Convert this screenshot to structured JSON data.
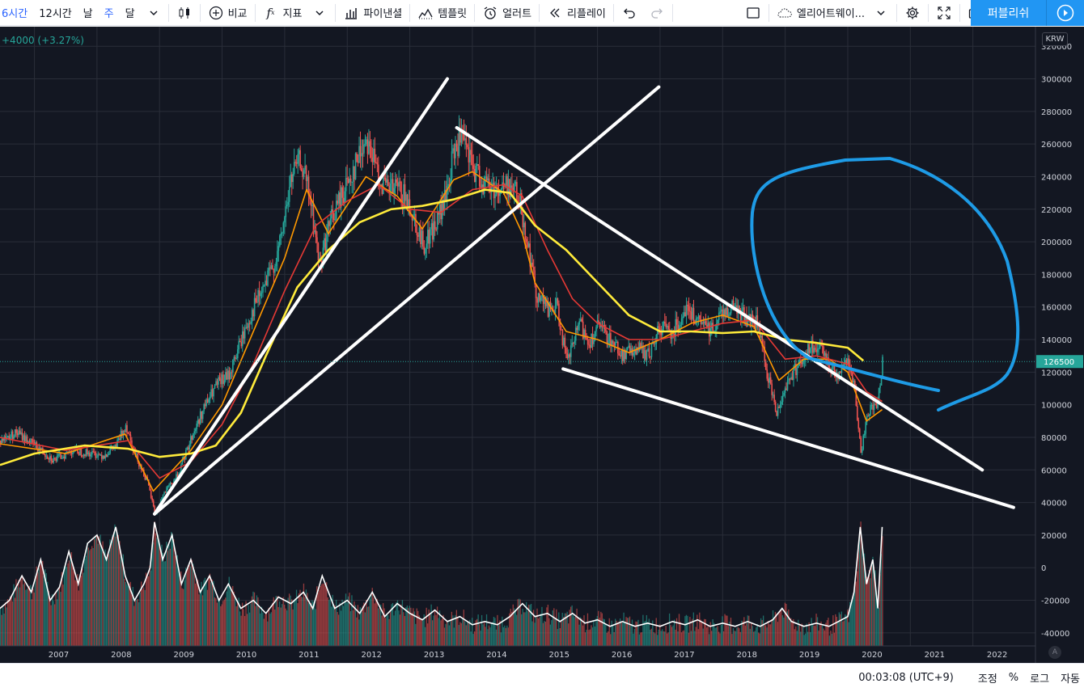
{
  "toolbar": {
    "intervals": [
      "6시간",
      "12시간",
      "날",
      "주",
      "달"
    ],
    "active_interval": "주",
    "compare_label": "비교",
    "indicators_label": "지표",
    "financials_label": "파이낸셜",
    "templates_label": "템플릿",
    "alert_label": "얼러트",
    "replay_label": "리플레이",
    "alert_name_label": "엘리어트웨이...",
    "publish_label": "퍼블리쉬",
    "icons": [
      "candles-icon",
      "plus-circle-icon",
      "fx-icon",
      "chevron-down-icon",
      "bar-chart-icon",
      "template-icon",
      "alarm-clock-icon",
      "rewind-icon",
      "undo-icon",
      "redo-icon",
      "rectangle-icon",
      "cloud-icon",
      "gear-icon",
      "fullscreen-icon",
      "camera-icon",
      "play-icon"
    ]
  },
  "chart": {
    "change_text": "+4000 (+3.27%)",
    "currency": "KRW",
    "last_price_label": "126500",
    "auto_label": "A",
    "colors": {
      "background": "#131722",
      "up": "#26a69a",
      "down": "#ef5350",
      "ma_orange": "#ff9800",
      "ma_red": "#e53935",
      "ma_yellow": "#ffeb3b",
      "trendline": "#ffffff",
      "circle": "#1e9be6",
      "volume_line": "#ffffff"
    }
  },
  "chart_data": {
    "type": "candlestick",
    "currency": "KRW",
    "y_ticks": [
      320000,
      300000,
      280000,
      260000,
      240000,
      220000,
      200000,
      180000,
      160000,
      140000,
      120000,
      100000,
      80000,
      60000,
      40000,
      20000,
      0,
      -20000,
      -40000
    ],
    "y_range": [
      -48000,
      332000
    ],
    "x_ticks": [
      "2007",
      "2008",
      "2009",
      "2010",
      "2011",
      "2012",
      "2013",
      "2014",
      "2015",
      "2016",
      "2017",
      "2018",
      "2019",
      "2020",
      "2021",
      "2022"
    ],
    "x_range": [
      2006.45,
      2023.0
    ],
    "last_price": 126500,
    "price_path": [
      [
        2006.45,
        78000
      ],
      [
        2006.7,
        83000
      ],
      [
        2007.0,
        75000
      ],
      [
        2007.3,
        66000
      ],
      [
        2007.6,
        72000
      ],
      [
        2007.9,
        70000
      ],
      [
        2008.1,
        69000
      ],
      [
        2008.3,
        75000
      ],
      [
        2008.45,
        88000
      ],
      [
        2008.6,
        70000
      ],
      [
        2008.8,
        52000
      ],
      [
        2008.92,
        33000
      ],
      [
        2009.05,
        45000
      ],
      [
        2009.3,
        58000
      ],
      [
        2009.5,
        80000
      ],
      [
        2009.7,
        98000
      ],
      [
        2009.9,
        112000
      ],
      [
        2010.1,
        118000
      ],
      [
        2010.3,
        140000
      ],
      [
        2010.5,
        160000
      ],
      [
        2010.7,
        175000
      ],
      [
        2010.9,
        195000
      ],
      [
        2011.1,
        240000
      ],
      [
        2011.25,
        250000
      ],
      [
        2011.4,
        225000
      ],
      [
        2011.55,
        185000
      ],
      [
        2011.7,
        210000
      ],
      [
        2011.9,
        228000
      ],
      [
        2012.15,
        250000
      ],
      [
        2012.3,
        265000
      ],
      [
        2012.45,
        245000
      ],
      [
        2012.6,
        232000
      ],
      [
        2012.8,
        232000
      ],
      [
        2013.0,
        222000
      ],
      [
        2013.2,
        198000
      ],
      [
        2013.4,
        210000
      ],
      [
        2013.55,
        225000
      ],
      [
        2013.7,
        255000
      ],
      [
        2013.8,
        264000
      ],
      [
        2014.0,
        245000
      ],
      [
        2014.2,
        235000
      ],
      [
        2014.4,
        232000
      ],
      [
        2014.6,
        235000
      ],
      [
        2014.75,
        225000
      ],
      [
        2014.85,
        205000
      ],
      [
        2015.0,
        170000
      ],
      [
        2015.2,
        158000
      ],
      [
        2015.35,
        160000
      ],
      [
        2015.5,
        125000
      ],
      [
        2015.7,
        150000
      ],
      [
        2015.85,
        138000
      ],
      [
        2016.0,
        148000
      ],
      [
        2016.2,
        140000
      ],
      [
        2016.4,
        130000
      ],
      [
        2016.6,
        135000
      ],
      [
        2016.8,
        130000
      ],
      [
        2017.0,
        148000
      ],
      [
        2017.2,
        145000
      ],
      [
        2017.4,
        160000
      ],
      [
        2017.6,
        150000
      ],
      [
        2017.8,
        146000
      ],
      [
        2018.0,
        158000
      ],
      [
        2018.2,
        160000
      ],
      [
        2018.4,
        152000
      ],
      [
        2018.55,
        150000
      ],
      [
        2018.7,
        120000
      ],
      [
        2018.85,
        95000
      ],
      [
        2019.0,
        112000
      ],
      [
        2019.2,
        125000
      ],
      [
        2019.4,
        135000
      ],
      [
        2019.6,
        132000
      ],
      [
        2019.8,
        118000
      ],
      [
        2020.0,
        128000
      ],
      [
        2020.1,
        108000
      ],
      [
        2020.2,
        70000
      ],
      [
        2020.3,
        95000
      ],
      [
        2020.45,
        100000
      ],
      [
        2020.55,
        126500
      ]
    ],
    "moving_averages": [
      {
        "color": "orange",
        "values": [
          [
            2006.45,
            76000
          ],
          [
            2007.5,
            70000
          ],
          [
            2008.45,
            82000
          ],
          [
            2008.9,
            47000
          ],
          [
            2009.5,
            72000
          ],
          [
            2010.0,
            100000
          ],
          [
            2010.5,
            145000
          ],
          [
            2011.0,
            190000
          ],
          [
            2011.35,
            232000
          ],
          [
            2011.7,
            205000
          ],
          [
            2012.3,
            240000
          ],
          [
            2012.8,
            228000
          ],
          [
            2013.2,
            208000
          ],
          [
            2013.7,
            238000
          ],
          [
            2014.0,
            243000
          ],
          [
            2014.5,
            230000
          ],
          [
            2014.8,
            205000
          ],
          [
            2015.0,
            175000
          ],
          [
            2015.5,
            145000
          ],
          [
            2016.0,
            140000
          ],
          [
            2016.5,
            132000
          ],
          [
            2017.0,
            140000
          ],
          [
            2017.5,
            150000
          ],
          [
            2018.0,
            155000
          ],
          [
            2018.5,
            148000
          ],
          [
            2018.9,
            115000
          ],
          [
            2019.3,
            128000
          ],
          [
            2019.7,
            128000
          ],
          [
            2020.0,
            120000
          ],
          [
            2020.3,
            90000
          ],
          [
            2020.55,
            97000
          ]
        ]
      },
      {
        "color": "red",
        "values": [
          [
            2006.45,
            80000
          ],
          [
            2007.5,
            72000
          ],
          [
            2008.5,
            78000
          ],
          [
            2009.0,
            55000
          ],
          [
            2009.5,
            65000
          ],
          [
            2010.0,
            88000
          ],
          [
            2010.5,
            125000
          ],
          [
            2011.0,
            170000
          ],
          [
            2011.5,
            210000
          ],
          [
            2012.0,
            225000
          ],
          [
            2012.5,
            235000
          ],
          [
            2013.0,
            220000
          ],
          [
            2013.5,
            218000
          ],
          [
            2014.0,
            232000
          ],
          [
            2014.5,
            235000
          ],
          [
            2014.8,
            228000
          ],
          [
            2015.2,
            195000
          ],
          [
            2015.6,
            165000
          ],
          [
            2016.0,
            150000
          ],
          [
            2016.5,
            140000
          ],
          [
            2017.0,
            140000
          ],
          [
            2017.5,
            145000
          ],
          [
            2018.0,
            150000
          ],
          [
            2018.5,
            152000
          ],
          [
            2019.0,
            128000
          ],
          [
            2019.5,
            130000
          ],
          [
            2020.0,
            125000
          ],
          [
            2020.3,
            108000
          ],
          [
            2020.55,
            102000
          ]
        ]
      },
      {
        "color": "yellow",
        "values": [
          [
            2006.45,
            63000
          ],
          [
            2007.0,
            70000
          ],
          [
            2007.8,
            75000
          ],
          [
            2008.5,
            73000
          ],
          [
            2009.0,
            68000
          ],
          [
            2009.5,
            70000
          ],
          [
            2009.9,
            75000
          ],
          [
            2010.3,
            95000
          ],
          [
            2010.7,
            130000
          ],
          [
            2011.2,
            172000
          ],
          [
            2011.7,
            195000
          ],
          [
            2012.2,
            212000
          ],
          [
            2012.7,
            220000
          ],
          [
            2013.2,
            222000
          ],
          [
            2013.7,
            226000
          ],
          [
            2014.2,
            232000
          ],
          [
            2014.6,
            230000
          ],
          [
            2015.0,
            210000
          ],
          [
            2015.5,
            195000
          ],
          [
            2016.0,
            175000
          ],
          [
            2016.5,
            155000
          ],
          [
            2017.0,
            145000
          ],
          [
            2017.5,
            145000
          ],
          [
            2018.0,
            144000
          ],
          [
            2018.5,
            145000
          ],
          [
            2019.0,
            140000
          ],
          [
            2019.5,
            138000
          ],
          [
            2020.0,
            135000
          ],
          [
            2020.25,
            127000
          ]
        ]
      }
    ],
    "volume_line": [
      [
        2006.45,
        -25000
      ],
      [
        2006.6,
        -20000
      ],
      [
        2006.8,
        -5000
      ],
      [
        2006.95,
        -15000
      ],
      [
        2007.1,
        5000
      ],
      [
        2007.25,
        -20000
      ],
      [
        2007.4,
        -12000
      ],
      [
        2007.55,
        10000
      ],
      [
        2007.7,
        -10000
      ],
      [
        2007.85,
        15000
      ],
      [
        2008.0,
        20000
      ],
      [
        2008.15,
        5000
      ],
      [
        2008.3,
        25000
      ],
      [
        2008.45,
        -5000
      ],
      [
        2008.6,
        -20000
      ],
      [
        2008.75,
        -10000
      ],
      [
        2008.85,
        0
      ],
      [
        2008.92,
        28000
      ],
      [
        2009.05,
        5000
      ],
      [
        2009.2,
        20000
      ],
      [
        2009.35,
        -10000
      ],
      [
        2009.5,
        5000
      ],
      [
        2009.65,
        -15000
      ],
      [
        2009.8,
        -5000
      ],
      [
        2009.95,
        -20000
      ],
      [
        2010.1,
        -10000
      ],
      [
        2010.3,
        -25000
      ],
      [
        2010.5,
        -20000
      ],
      [
        2010.7,
        -28000
      ],
      [
        2010.9,
        -18000
      ],
      [
        2011.1,
        -22000
      ],
      [
        2011.3,
        -15000
      ],
      [
        2011.45,
        -25000
      ],
      [
        2011.6,
        -5000
      ],
      [
        2011.8,
        -25000
      ],
      [
        2012.0,
        -20000
      ],
      [
        2012.2,
        -28000
      ],
      [
        2012.4,
        -15000
      ],
      [
        2012.6,
        -30000
      ],
      [
        2012.8,
        -22000
      ],
      [
        2013.0,
        -28000
      ],
      [
        2013.2,
        -32000
      ],
      [
        2013.4,
        -26000
      ],
      [
        2013.6,
        -33000
      ],
      [
        2013.8,
        -30000
      ],
      [
        2014.0,
        -35000
      ],
      [
        2014.2,
        -33000
      ],
      [
        2014.4,
        -35000
      ],
      [
        2014.6,
        -30000
      ],
      [
        2014.8,
        -22000
      ],
      [
        2015.0,
        -30000
      ],
      [
        2015.2,
        -28000
      ],
      [
        2015.4,
        -33000
      ],
      [
        2015.6,
        -28000
      ],
      [
        2015.8,
        -34000
      ],
      [
        2016.0,
        -32000
      ],
      [
        2016.2,
        -36000
      ],
      [
        2016.4,
        -33000
      ],
      [
        2016.6,
        -36000
      ],
      [
        2016.8,
        -34000
      ],
      [
        2017.0,
        -36000
      ],
      [
        2017.2,
        -33000
      ],
      [
        2017.4,
        -35000
      ],
      [
        2017.6,
        -32000
      ],
      [
        2017.8,
        -36000
      ],
      [
        2018.0,
        -34000
      ],
      [
        2018.2,
        -36000
      ],
      [
        2018.4,
        -33000
      ],
      [
        2018.6,
        -36000
      ],
      [
        2018.8,
        -32000
      ],
      [
        2018.95,
        -25000
      ],
      [
        2019.1,
        -33000
      ],
      [
        2019.3,
        -36000
      ],
      [
        2019.5,
        -34000
      ],
      [
        2019.7,
        -36000
      ],
      [
        2019.85,
        -33000
      ],
      [
        2020.0,
        -30000
      ],
      [
        2020.1,
        -15000
      ],
      [
        2020.2,
        25000
      ],
      [
        2020.3,
        -10000
      ],
      [
        2020.4,
        5000
      ],
      [
        2020.48,
        -25000
      ],
      [
        2020.55,
        25000
      ]
    ]
  },
  "drawings": {
    "trendlines": [
      {
        "p1": [
          2008.92,
          33000
        ],
        "p2": [
          2013.6,
          300000
        ]
      },
      {
        "p1": [
          2008.92,
          33000
        ],
        "p2": [
          2016.98,
          295000
        ]
      },
      {
        "p1": [
          2013.75,
          270000
        ],
        "p2": [
          2022.15,
          60000
        ]
      },
      {
        "p1": [
          2015.45,
          122000
        ],
        "p2": [
          2022.65,
          37000
        ]
      }
    ]
  },
  "statusbar": {
    "clock": "00:03:08 (UTC+9)",
    "adjust": "조정",
    "percent": "%",
    "log": "로그",
    "auto": "자동"
  }
}
